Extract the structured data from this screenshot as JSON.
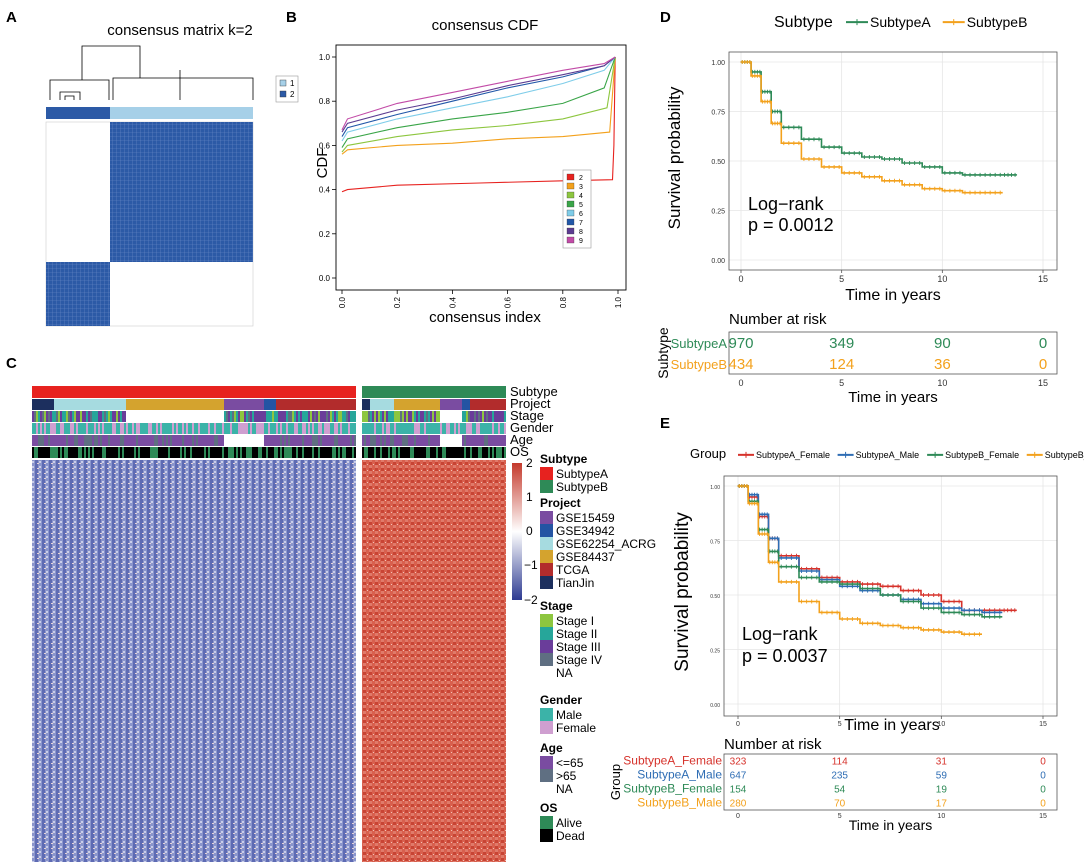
{
  "panel_labels": {
    "a": "A",
    "b": "B",
    "c": "C",
    "d": "D",
    "e": "E"
  },
  "colors": {
    "blue": "#2c5aa6",
    "lightblue": "#a6d0e8",
    "subA": "#e7221f",
    "subB": "#2e8a57",
    "kmA": "#2e8a57",
    "kmB": "#f3a11c",
    "red": "#d6322b",
    "blueE": "#2e6db4",
    "greenE": "#2e8a57",
    "orangeE": "#f3a11c",
    "heatRed": "#c84434",
    "heatBlue": "#3a49a0"
  },
  "chart_data": [
    {
      "type": "heatmap",
      "id": "A",
      "title": "consensus matrix k=2",
      "legend": [
        "1",
        "2"
      ],
      "clusters": [
        {
          "name": "2",
          "fraction": 0.3
        },
        {
          "name": "1",
          "fraction": 0.7
        }
      ]
    },
    {
      "type": "line",
      "id": "B",
      "title": "consensus CDF",
      "xlabel": "consensus index",
      "ylabel": "CDF",
      "xlim": [
        0,
        1
      ],
      "ylim": [
        0,
        1
      ],
      "xticks": [
        "0.0",
        "0.2",
        "0.4",
        "0.6",
        "0.8",
        "1.0"
      ],
      "yticks": [
        "0.0",
        "0.2",
        "0.4",
        "0.6",
        "0.8",
        "1.0"
      ],
      "series": [
        {
          "name": "2",
          "color": "#e7221f",
          "points": [
            [
              0,
              0.39
            ],
            [
              0.02,
              0.4
            ],
            [
              0.2,
              0.42
            ],
            [
              0.5,
              0.43
            ],
            [
              0.8,
              0.44
            ],
            [
              0.98,
              0.445
            ],
            [
              0.985,
              0.6
            ],
            [
              0.99,
              1.0
            ]
          ]
        },
        {
          "name": "3",
          "color": "#f3a11c",
          "points": [
            [
              0,
              0.56
            ],
            [
              0.02,
              0.58
            ],
            [
              0.2,
              0.6
            ],
            [
              0.4,
              0.61
            ],
            [
              0.6,
              0.63
            ],
            [
              0.8,
              0.64
            ],
            [
              0.97,
              0.66
            ],
            [
              0.99,
              1.0
            ]
          ]
        },
        {
          "name": "4",
          "color": "#8dc63f",
          "points": [
            [
              0,
              0.57
            ],
            [
              0.02,
              0.6
            ],
            [
              0.2,
              0.64
            ],
            [
              0.4,
              0.67
            ],
            [
              0.6,
              0.69
            ],
            [
              0.8,
              0.72
            ],
            [
              0.96,
              0.77
            ],
            [
              0.99,
              1.0
            ]
          ]
        },
        {
          "name": "5",
          "color": "#3aa548",
          "points": [
            [
              0,
              0.59
            ],
            [
              0.02,
              0.63
            ],
            [
              0.2,
              0.68
            ],
            [
              0.4,
              0.72
            ],
            [
              0.6,
              0.75
            ],
            [
              0.8,
              0.79
            ],
            [
              0.95,
              0.86
            ],
            [
              0.99,
              1.0
            ]
          ]
        },
        {
          "name": "6",
          "color": "#7fcde9",
          "points": [
            [
              0,
              0.62
            ],
            [
              0.02,
              0.66
            ],
            [
              0.2,
              0.72
            ],
            [
              0.4,
              0.77
            ],
            [
              0.6,
              0.82
            ],
            [
              0.8,
              0.88
            ],
            [
              0.95,
              0.94
            ],
            [
              0.99,
              1.0
            ]
          ]
        },
        {
          "name": "7",
          "color": "#2157a8",
          "points": [
            [
              0,
              0.64
            ],
            [
              0.02,
              0.68
            ],
            [
              0.2,
              0.74
            ],
            [
              0.4,
              0.8
            ],
            [
              0.6,
              0.86
            ],
            [
              0.8,
              0.91
            ],
            [
              0.95,
              0.96
            ],
            [
              0.99,
              1.0
            ]
          ]
        },
        {
          "name": "8",
          "color": "#5c3c91",
          "points": [
            [
              0,
              0.66
            ],
            [
              0.02,
              0.7
            ],
            [
              0.2,
              0.76
            ],
            [
              0.4,
              0.81
            ],
            [
              0.6,
              0.87
            ],
            [
              0.8,
              0.92
            ],
            [
              0.95,
              0.96
            ],
            [
              0.99,
              1.0
            ]
          ]
        },
        {
          "name": "9",
          "color": "#c24ba7",
          "points": [
            [
              0,
              0.67
            ],
            [
              0.02,
              0.72
            ],
            [
              0.2,
              0.79
            ],
            [
              0.4,
              0.84
            ],
            [
              0.6,
              0.89
            ],
            [
              0.8,
              0.94
            ],
            [
              0.95,
              0.97
            ],
            [
              0.99,
              1.0
            ]
          ]
        }
      ]
    },
    {
      "type": "heatmap",
      "id": "C",
      "tracks": [
        "Subtype",
        "Project",
        "Stage",
        "Gender",
        "Age",
        "OS"
      ],
      "colorbar": {
        "ticks": [
          "2",
          "1",
          "0",
          "−1",
          "−2"
        ]
      },
      "legend_groups": [
        {
          "title": "Subtype",
          "items": [
            {
              "label": "SubtypeA",
              "color": "#e7221f"
            },
            {
              "label": "SubtypeB",
              "color": "#2e8a57"
            }
          ]
        },
        {
          "title": "Project",
          "items": [
            {
              "label": "GSE15459",
              "color": "#7a4ca1"
            },
            {
              "label": "GSE34942",
              "color": "#2454a3"
            },
            {
              "label": "GSE62254_ACRG",
              "color": "#a6dbe0"
            },
            {
              "label": "GSE84437",
              "color": "#d4a32e"
            },
            {
              "label": "TCGA",
              "color": "#b22c2c"
            },
            {
              "label": "TianJin",
              "color": "#1c2f5e"
            }
          ]
        },
        {
          "title": "Stage",
          "items": [
            {
              "label": "Stage I",
              "color": "#8dc63f"
            },
            {
              "label": "Stage II",
              "color": "#26a69a"
            },
            {
              "label": "Stage III",
              "color": "#6a3d9a"
            },
            {
              "label": "Stage IV",
              "color": "#5f6f82"
            },
            {
              "label": "NA",
              "color": "#ffffff"
            }
          ]
        },
        {
          "title": "Gender",
          "items": [
            {
              "label": "Male",
              "color": "#3bb3a8"
            },
            {
              "label": "Female",
              "color": "#cf9fd0"
            }
          ]
        },
        {
          "title": "Age",
          "items": [
            {
              "label": "<=65",
              "color": "#7a4ca1"
            },
            {
              "label": ">65",
              "color": "#5f6f82"
            },
            {
              "label": "NA",
              "color": "#ffffff"
            }
          ]
        },
        {
          "title": "OS",
          "items": [
            {
              "label": "Alive",
              "color": "#2e8a57"
            },
            {
              "label": "Dead",
              "color": "#000000"
            }
          ]
        }
      ]
    },
    {
      "type": "line",
      "id": "D",
      "legend_title": "Subtype",
      "xlabel": "Time in years",
      "ylabel": "Survival probability",
      "xlim": [
        0,
        15
      ],
      "ylim": [
        0,
        1
      ],
      "xticks": [
        "0",
        "5",
        "10",
        "15"
      ],
      "yticks": [
        "0.00",
        "0.25",
        "0.50",
        "0.75",
        "1.00"
      ],
      "annotation": [
        "Log−rank",
        "p = 0.0012"
      ],
      "series": [
        {
          "name": "SubtypeA",
          "color": "#2e8a57",
          "points": [
            [
              0,
              1.0
            ],
            [
              0.5,
              0.95
            ],
            [
              1,
              0.85
            ],
            [
              1.5,
              0.75
            ],
            [
              2,
              0.67
            ],
            [
              3,
              0.61
            ],
            [
              4,
              0.57
            ],
            [
              5,
              0.54
            ],
            [
              6,
              0.52
            ],
            [
              7,
              0.51
            ],
            [
              8,
              0.49
            ],
            [
              9,
              0.47
            ],
            [
              10,
              0.44
            ],
            [
              11,
              0.43
            ],
            [
              12,
              0.43
            ],
            [
              13,
              0.43
            ],
            [
              13.7,
              0.43
            ]
          ]
        },
        {
          "name": "SubtypeB",
          "color": "#f3a11c",
          "points": [
            [
              0,
              1.0
            ],
            [
              0.5,
              0.93
            ],
            [
              1,
              0.8
            ],
            [
              1.5,
              0.69
            ],
            [
              2,
              0.59
            ],
            [
              3,
              0.51
            ],
            [
              4,
              0.47
            ],
            [
              5,
              0.44
            ],
            [
              6,
              0.42
            ],
            [
              7,
              0.4
            ],
            [
              8,
              0.38
            ],
            [
              9,
              0.36
            ],
            [
              10,
              0.35
            ],
            [
              11,
              0.34
            ],
            [
              12,
              0.34
            ],
            [
              13,
              0.34
            ]
          ]
        }
      ],
      "risk_table": {
        "title": "Number at risk",
        "ylabel": "Subtype",
        "xlabel": "Time in years",
        "xticks": [
          "0",
          "5",
          "10",
          "15"
        ],
        "rows": [
          {
            "label": "SubtypeA",
            "color": "#2e8a57",
            "values": [
              "970",
              "349",
              "90",
              "0"
            ]
          },
          {
            "label": "SubtypeB",
            "color": "#f3a11c",
            "values": [
              "434",
              "124",
              "36",
              "0"
            ]
          }
        ]
      }
    },
    {
      "type": "line",
      "id": "E",
      "legend_title": "Group",
      "xlabel": "Time in years",
      "ylabel": "Survival probability",
      "xlim": [
        0,
        15
      ],
      "ylim": [
        0,
        1
      ],
      "xticks": [
        "0",
        "5",
        "10",
        "15"
      ],
      "yticks": [
        "0.00",
        "0.25",
        "0.50",
        "0.75",
        "1.00"
      ],
      "annotation": [
        "Log−rank",
        "p = 0.0037"
      ],
      "series": [
        {
          "name": "SubtypeA_Female",
          "color": "#d6322b",
          "points": [
            [
              0,
              1.0
            ],
            [
              0.5,
              0.95
            ],
            [
              1,
              0.86
            ],
            [
              1.5,
              0.76
            ],
            [
              2,
              0.68
            ],
            [
              3,
              0.62
            ],
            [
              4,
              0.58
            ],
            [
              5,
              0.56
            ],
            [
              6,
              0.55
            ],
            [
              7,
              0.54
            ],
            [
              8,
              0.52
            ],
            [
              9,
              0.5
            ],
            [
              10,
              0.47
            ],
            [
              11,
              0.43
            ],
            [
              12,
              0.43
            ],
            [
              13,
              0.43
            ],
            [
              13.7,
              0.43
            ]
          ]
        },
        {
          "name": "SubtypeA_Male",
          "color": "#2e6db4",
          "points": [
            [
              0,
              1.0
            ],
            [
              0.5,
              0.96
            ],
            [
              1,
              0.87
            ],
            [
              1.5,
              0.76
            ],
            [
              2,
              0.67
            ],
            [
              3,
              0.61
            ],
            [
              4,
              0.57
            ],
            [
              5,
              0.54
            ],
            [
              6,
              0.52
            ],
            [
              7,
              0.5
            ],
            [
              8,
              0.48
            ],
            [
              9,
              0.46
            ],
            [
              10,
              0.44
            ],
            [
              11,
              0.43
            ],
            [
              12,
              0.42
            ],
            [
              13,
              0.42
            ]
          ]
        },
        {
          "name": "SubtypeB_Female",
          "color": "#2e8a57",
          "points": [
            [
              0,
              1.0
            ],
            [
              0.5,
              0.93
            ],
            [
              1,
              0.8
            ],
            [
              1.5,
              0.7
            ],
            [
              2,
              0.63
            ],
            [
              3,
              0.58
            ],
            [
              4,
              0.56
            ],
            [
              5,
              0.55
            ],
            [
              6,
              0.53
            ],
            [
              7,
              0.5
            ],
            [
              8,
              0.47
            ],
            [
              9,
              0.44
            ],
            [
              10,
              0.42
            ],
            [
              11,
              0.41
            ],
            [
              12,
              0.4
            ],
            [
              13,
              0.4
            ]
          ]
        },
        {
          "name": "SubtypeB_Male",
          "color": "#f3a11c",
          "points": [
            [
              0,
              1.0
            ],
            [
              0.5,
              0.92
            ],
            [
              1,
              0.78
            ],
            [
              1.5,
              0.65
            ],
            [
              2,
              0.56
            ],
            [
              3,
              0.47
            ],
            [
              4,
              0.42
            ],
            [
              5,
              0.39
            ],
            [
              6,
              0.37
            ],
            [
              7,
              0.36
            ],
            [
              8,
              0.35
            ],
            [
              9,
              0.34
            ],
            [
              10,
              0.33
            ],
            [
              11,
              0.32
            ],
            [
              12,
              0.32
            ]
          ]
        }
      ],
      "risk_table": {
        "title": "Number at risk",
        "ylabel": "Group",
        "xlabel": "Time in years",
        "xticks": [
          "0",
          "5",
          "10",
          "15"
        ],
        "rows": [
          {
            "label": "SubtypeA_Female",
            "color": "#d6322b",
            "values": [
              "323",
              "114",
              "31",
              "0"
            ]
          },
          {
            "label": "SubtypeA_Male",
            "color": "#2e6db4",
            "values": [
              "647",
              "235",
              "59",
              "0"
            ]
          },
          {
            "label": "SubtypeB_Female",
            "color": "#2e8a57",
            "values": [
              "154",
              "54",
              "19",
              "0"
            ]
          },
          {
            "label": "SubtypeB_Male",
            "color": "#f3a11c",
            "values": [
              "280",
              "70",
              "17",
              "0"
            ]
          }
        ]
      }
    }
  ]
}
